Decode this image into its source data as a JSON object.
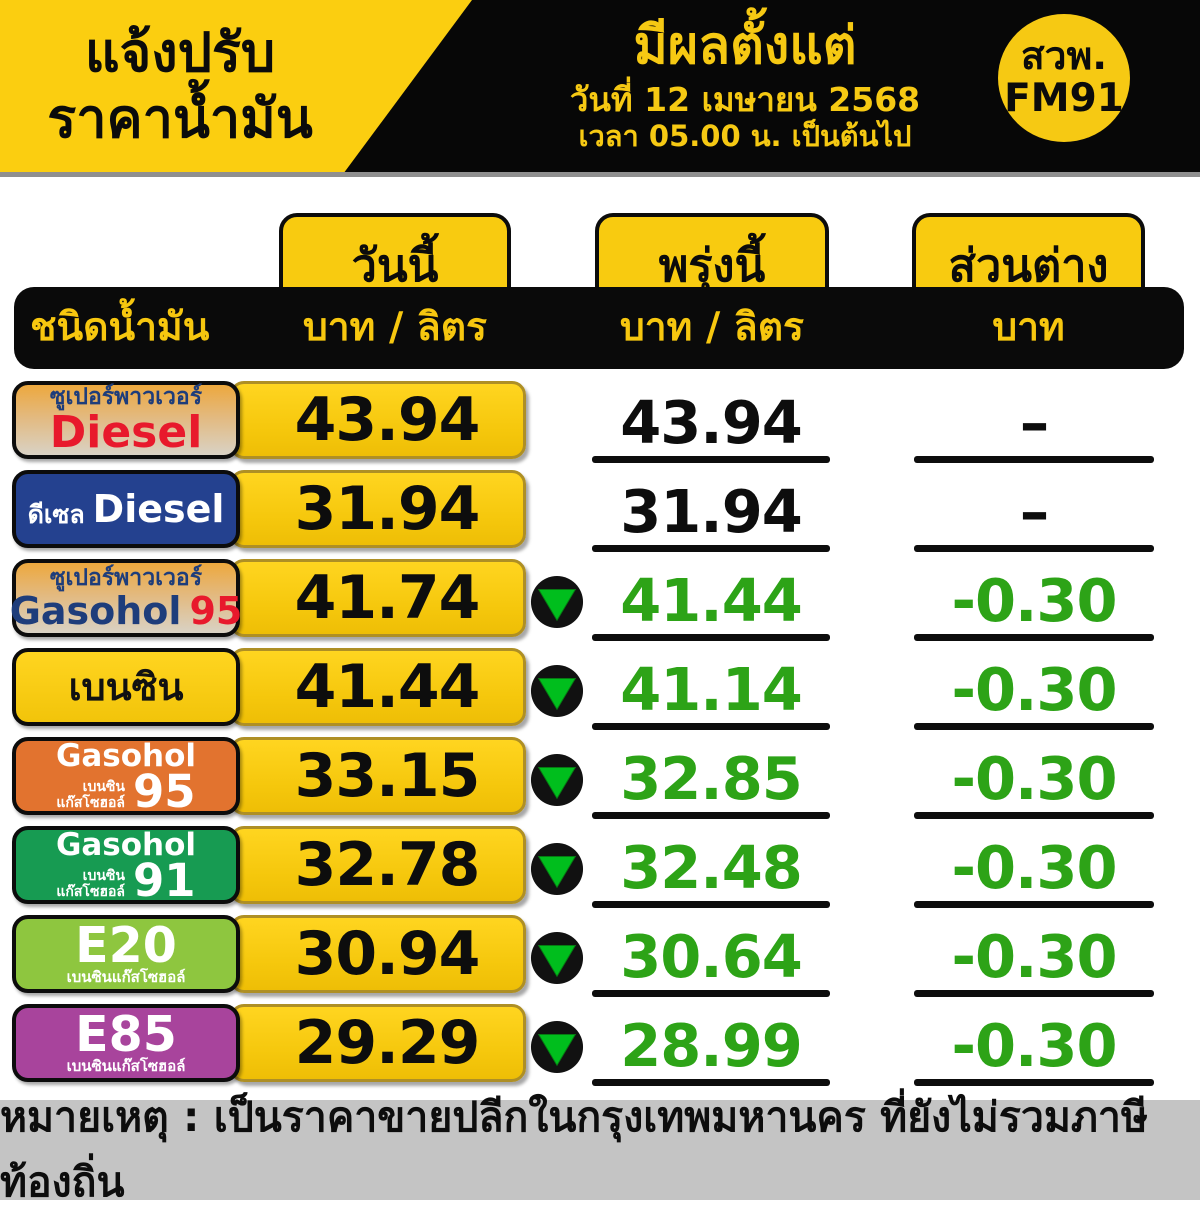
{
  "header": {
    "title_line1": "แจ้งปรับ",
    "title_line2": "ราคาน้ำมัน",
    "effective_title": "มีผลตั้งแต่",
    "effective_date": "วันที่ 12 เมษายน 2568",
    "effective_time": "เวลา 05.00 น. เป็นต้นไป",
    "station_line1": "สวพ.",
    "station_line2": "FM91"
  },
  "table": {
    "col_today": "วันนี้",
    "col_tomorrow": "พรุ่งนี้",
    "col_diff": "ส่วนต่าง",
    "col_fuel_type": "ชนิดน้ำมัน",
    "unit_today": "บาท / ลิตร",
    "unit_tomorrow": "บาท / ลิตร",
    "unit_diff": "บาท",
    "rows": [
      {
        "style": "superpower",
        "changed": false,
        "label": {
          "lines": [
            {
              "segments": [
                {
                  "t": "ซูเปอร์พาวเวอร์",
                  "c": "navy-sm"
                }
              ]
            },
            {
              "segments": [
                {
                  "t": "Diesel",
                  "c": "red-lg"
                }
              ]
            }
          ]
        },
        "today": "43.94",
        "tomorrow": "43.94",
        "diff": "–"
      },
      {
        "style": "diesel-blue",
        "changed": false,
        "label": {
          "lines": [
            {
              "segments": [
                {
                  "t": "ดีเซล",
                  "c": "white-sm"
                },
                {
                  "t": "Diesel",
                  "c": "white-lg"
                }
              ]
            }
          ]
        },
        "today": "31.94",
        "tomorrow": "31.94",
        "diff": "–"
      },
      {
        "style": "superpower",
        "changed": true,
        "label": {
          "lines": [
            {
              "segments": [
                {
                  "t": "ซูเปอร์พาวเวอร์",
                  "c": "navy-sm"
                }
              ]
            },
            {
              "segments": [
                {
                  "t": "Gasohol",
                  "c": "navy-lg"
                },
                {
                  "t": "95",
                  "c": "red-num"
                }
              ]
            }
          ]
        },
        "today": "41.74",
        "tomorrow": "41.44",
        "diff": "-0.30"
      },
      {
        "style": "benzin-yellow",
        "changed": true,
        "label": {
          "lines": [
            {
              "segments": [
                {
                  "t": "เบนซิน",
                  "c": "black-lg"
                }
              ]
            }
          ]
        },
        "today": "41.44",
        "tomorrow": "41.14",
        "diff": "-0.30"
      },
      {
        "style": "gasohol95-orange",
        "changed": true,
        "label": {
          "lines": [
            {
              "segments": [
                {
                  "t": "Gasohol",
                  "c": "white-gasohol"
                }
              ]
            },
            {
              "segments": [
                {
                  "t": "เบนซิน\nแก๊สโซฮอล์",
                  "c": "tiny-stack"
                },
                {
                  "t": "95",
                  "c": "big-num"
                }
              ]
            }
          ]
        },
        "today": "33.15",
        "tomorrow": "32.85",
        "diff": "-0.30"
      },
      {
        "style": "gasohol91-green",
        "changed": true,
        "label": {
          "lines": [
            {
              "segments": [
                {
                  "t": "Gasohol",
                  "c": "white-gasohol"
                }
              ]
            },
            {
              "segments": [
                {
                  "t": "เบนซิน\nแก๊สโซฮอล์",
                  "c": "tiny-stack"
                },
                {
                  "t": "91",
                  "c": "big-num"
                }
              ]
            }
          ]
        },
        "today": "32.78",
        "tomorrow": "32.48",
        "diff": "-0.30"
      },
      {
        "style": "e20-lightgreen",
        "changed": true,
        "label": {
          "lines": [
            {
              "segments": [
                {
                  "t": "E20",
                  "c": "e-big"
                }
              ]
            },
            {
              "segments": [
                {
                  "t": "เบนซินแก๊สโซฮอล์",
                  "c": "e-tiny"
                }
              ]
            }
          ]
        },
        "today": "30.94",
        "tomorrow": "30.64",
        "diff": "-0.30"
      },
      {
        "style": "e85-purple",
        "changed": true,
        "label": {
          "lines": [
            {
              "segments": [
                {
                  "t": "E85",
                  "c": "e-big"
                }
              ]
            },
            {
              "segments": [
                {
                  "t": "เบนซินแก๊สโซฮอล์",
                  "c": "e-tiny"
                }
              ]
            }
          ]
        },
        "today": "29.29",
        "tomorrow": "28.99",
        "diff": "-0.30"
      }
    ]
  },
  "footer": {
    "note": "หมายเหตุ : เป็นราคาขายปลีกในกรุงเทพมหานคร ที่ยังไม่รวมภาษีท้องถิ่น"
  },
  "colors": {
    "brand_yellow": "#FBCE10",
    "header_black": "#070707",
    "price_green": "#2DA317",
    "arrow_green": "#00BE1D",
    "diesel_blue": "#24418F",
    "gasohol95_orange": "#E2732F",
    "gasohol91_green": "#179B52",
    "e20_light_green": "#8EC63F",
    "e85_purple": "#A8449C",
    "footer_gray": "#C4C4C4",
    "label_red": "#E8192C",
    "label_navy": "#1E3D7B"
  },
  "chart_data": {
    "type": "table",
    "title": "แจ้งปรับราคาน้ำมัน มีผลตั้งแต่วันที่ 12 เมษายน 2568 เวลา 05.00 น. เป็นต้นไป",
    "source": "สวพ. FM91",
    "columns": [
      "ชนิดน้ำมัน",
      "วันนี้ (บาท / ลิตร)",
      "พรุ่งนี้ (บาท / ลิตร)",
      "ส่วนต่าง (บาท)"
    ],
    "rows": [
      [
        "ซูเปอร์พาวเวอร์ Diesel",
        43.94,
        43.94,
        null
      ],
      [
        "ดีเซล Diesel",
        31.94,
        31.94,
        null
      ],
      [
        "ซูเปอร์พาวเวอร์ Gasohol 95",
        41.74,
        41.44,
        -0.3
      ],
      [
        "เบนซิน",
        41.44,
        41.14,
        -0.3
      ],
      [
        "เบนซินแก๊สโซฮอล์ Gasohol 95",
        33.15,
        32.85,
        -0.3
      ],
      [
        "เบนซินแก๊สโซฮอล์ Gasohol 91",
        32.78,
        32.48,
        -0.3
      ],
      [
        "E20 เบนซินแก๊สโซฮอล์",
        30.94,
        30.64,
        -0.3
      ],
      [
        "E85 เบนซินแก๊สโซฮอล์",
        29.29,
        28.99,
        -0.3
      ]
    ],
    "note": "หมายเหตุ : เป็นราคาขายปลีกในกรุงเทพมหานคร ที่ยังไม่รวมภาษีท้องถิ่น"
  }
}
